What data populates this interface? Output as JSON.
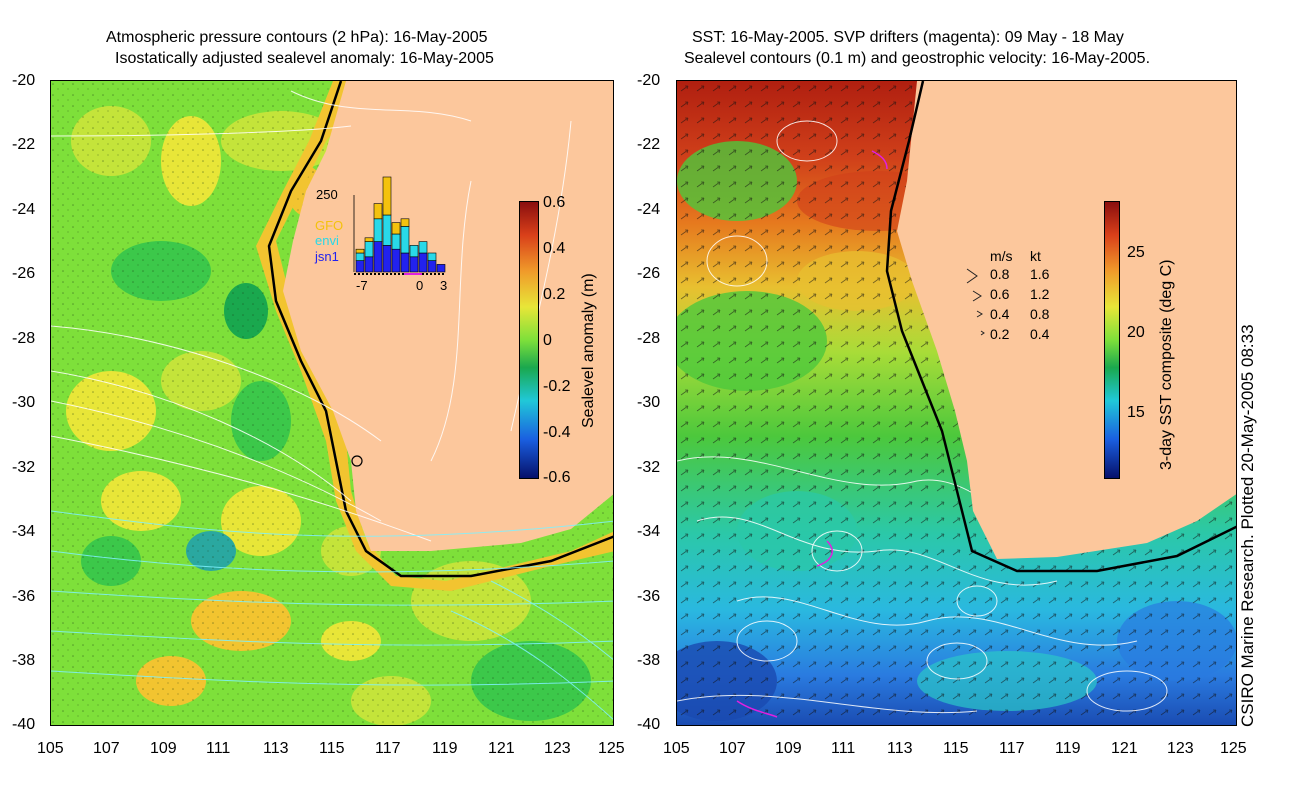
{
  "left_panel": {
    "title_line1": "Atmospheric pressure contours (2 hPa): 16-May-2005",
    "title_line2": "Isostatically adjusted sealevel anomaly: 16-May-2005",
    "y_ticks": [
      "-20",
      "-22",
      "-24",
      "-26",
      "-28",
      "-30",
      "-32",
      "-34",
      "-36",
      "-38",
      "-40"
    ],
    "x_ticks": [
      "105",
      "107",
      "109",
      "111",
      "113",
      "115",
      "117",
      "119",
      "121",
      "123",
      "125"
    ],
    "colorbar": {
      "label": "Sealevel anomaly (m)",
      "ticks": [
        "0.6",
        "0.4",
        "0.2",
        "0",
        "-0.2",
        "-0.4",
        "-0.6"
      ],
      "range": [
        -0.6,
        0.6
      ]
    },
    "histogram": {
      "max_label": "250",
      "x_labels": [
        "-7",
        "0",
        "3"
      ],
      "legend": [
        "GFO",
        "envi",
        "jsn1"
      ],
      "legend_colors": [
        "#f4c20d",
        "#29d9e8",
        "#2222ee"
      ],
      "bars": [
        {
          "jsn1": 30,
          "envi": 20,
          "gfo": 10
        },
        {
          "jsn1": 40,
          "envi": 40,
          "gfo": 10
        },
        {
          "jsn1": 80,
          "envi": 60,
          "gfo": 40
        },
        {
          "jsn1": 70,
          "envi": 80,
          "gfo": 100
        },
        {
          "jsn1": 60,
          "envi": 40,
          "gfo": 30
        },
        {
          "jsn1": 50,
          "envi": 70,
          "gfo": 20
        },
        {
          "jsn1": 40,
          "envi": 30,
          "gfo": 0
        },
        {
          "jsn1": 50,
          "envi": 30,
          "gfo": 0
        },
        {
          "jsn1": 30,
          "envi": 20,
          "gfo": 0
        },
        {
          "jsn1": 20,
          "envi": 0,
          "gfo": 0
        }
      ]
    }
  },
  "right_panel": {
    "title_line1": "SST: 16-May-2005. SVP drifters (magenta): 09 May - 18 May",
    "title_line2": "Sealevel contours (0.1 m) and geostrophic velocity: 16-May-2005.",
    "y_ticks": [
      "-20",
      "-22",
      "-24",
      "-26",
      "-28",
      "-30",
      "-32",
      "-34",
      "-36",
      "-38",
      "-40"
    ],
    "x_ticks": [
      "105",
      "107",
      "109",
      "111",
      "113",
      "115",
      "117",
      "119",
      "121",
      "123",
      "125"
    ],
    "colorbar": {
      "label": "3-day SST composite (deg C)",
      "ticks": [
        "25",
        "20",
        "15"
      ],
      "range": [
        11,
        28
      ]
    },
    "velocity_legend": {
      "header_ms": "m/s",
      "header_kt": "kt",
      "rows": [
        {
          "ms": "0.8",
          "kt": "1.6"
        },
        {
          "ms": "0.6",
          "kt": "1.2"
        },
        {
          "ms": "0.4",
          "kt": "0.8"
        },
        {
          "ms": "0.2",
          "kt": "0.4"
        }
      ]
    }
  },
  "credit": "CSIRO Marine Research. Plotted 20-May-2005 08:33",
  "colors": {
    "land": "#fcc79c",
    "ocean_green": "#7ee03a",
    "ocean_yellow": "#e8e638",
    "sst_red": "#b01f10",
    "sst_orange": "#e6791e",
    "sst_cyan": "#2bc8d8",
    "sst_blue": "#2a7be0",
    "drifter": "#e020e0"
  }
}
